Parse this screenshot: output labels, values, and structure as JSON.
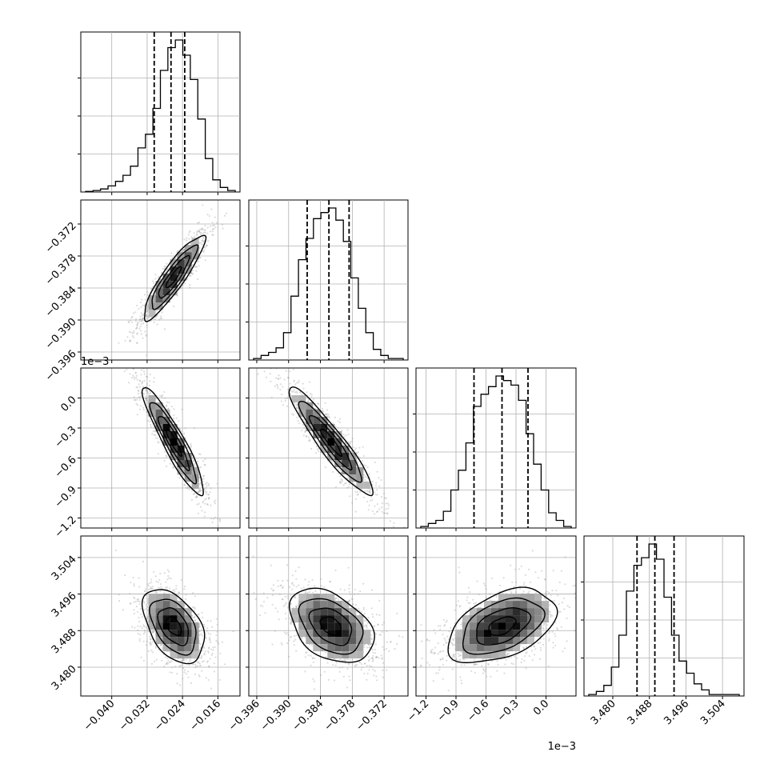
{
  "chart_data": {
    "type": "corner",
    "colors": {
      "ink": "#000000",
      "grid": "#b0b0b0",
      "samples": "#9a9a9a"
    },
    "params": [
      {
        "range": [
          -0.047,
          -0.011
        ],
        "ticks": [
          -0.04,
          -0.032,
          -0.024,
          -0.016
        ],
        "tick_labels": [
          "−0.040",
          "−0.032",
          "−0.024",
          "−0.016"
        ],
        "offset_text": "",
        "quantiles": [
          -0.0304,
          -0.0266,
          -0.0235
        ],
        "peak": -0.026,
        "hist": [
          0.004,
          0.01,
          0.02,
          0.04,
          0.07,
          0.11,
          0.17,
          0.29,
          0.38,
          0.55,
          0.8,
          0.95,
          1.0,
          0.9,
          0.74,
          0.48,
          0.22,
          0.08,
          0.03,
          0.01
        ]
      },
      {
        "range": [
          -0.3975,
          -0.3675
        ],
        "ticks": [
          -0.396,
          -0.39,
          -0.384,
          -0.378,
          -0.372
        ],
        "tick_labels": [
          "−0.396",
          "−0.390",
          "−0.384",
          "−0.378",
          "−0.372"
        ],
        "offset_text": "",
        "quantiles": [
          -0.3865,
          -0.3824,
          -0.3786
        ],
        "peak": -0.382,
        "hist": [
          0.01,
          0.03,
          0.05,
          0.08,
          0.18,
          0.42,
          0.66,
          0.8,
          0.93,
          0.97,
          1.0,
          0.92,
          0.78,
          0.54,
          0.34,
          0.18,
          0.07,
          0.03,
          0.01,
          0.01
        ]
      },
      {
        "range": [
          -1.3,
          0.3
        ],
        "ticks": [
          -1.2,
          -0.9,
          -0.6,
          -0.3,
          0.0
        ],
        "tick_labels": [
          "−1.2",
          "−0.9",
          "−0.6",
          "−0.3",
          "0.0"
        ],
        "offset_text": "1e−3",
        "quantiles": [
          -0.72,
          -0.44,
          -0.18
        ],
        "peak": -0.44,
        "hist": [
          0.01,
          0.03,
          0.05,
          0.11,
          0.25,
          0.38,
          0.56,
          0.8,
          0.88,
          0.93,
          1.0,
          0.97,
          0.94,
          0.84,
          0.62,
          0.42,
          0.25,
          0.1,
          0.05,
          0.01
        ]
      },
      {
        "range": [
          3.4737,
          3.5087
        ],
        "ticks": [
          3.48,
          3.488,
          3.496,
          3.504
        ],
        "tick_labels": [
          "3.480",
          "3.488",
          "3.496",
          "3.504"
        ],
        "offset_text": "",
        "quantiles": [
          3.4853,
          3.4892,
          3.4934
        ],
        "peak": 3.489,
        "hist": [
          0.01,
          0.03,
          0.07,
          0.19,
          0.4,
          0.69,
          0.86,
          0.91,
          1.0,
          0.9,
          0.65,
          0.4,
          0.23,
          0.15,
          0.08,
          0.04,
          0.01,
          0.01,
          0.01,
          0.01
        ]
      }
    ],
    "pairs": [
      {
        "row": 1,
        "col": 0,
        "corr": 0.9
      },
      {
        "row": 2,
        "col": 0,
        "corr": -0.92
      },
      {
        "row": 2,
        "col": 1,
        "corr": -0.93
      },
      {
        "row": 3,
        "col": 0,
        "corr": -0.45
      },
      {
        "row": 3,
        "col": 1,
        "corr": -0.4
      },
      {
        "row": 3,
        "col": 2,
        "corr": 0.45
      }
    ]
  }
}
